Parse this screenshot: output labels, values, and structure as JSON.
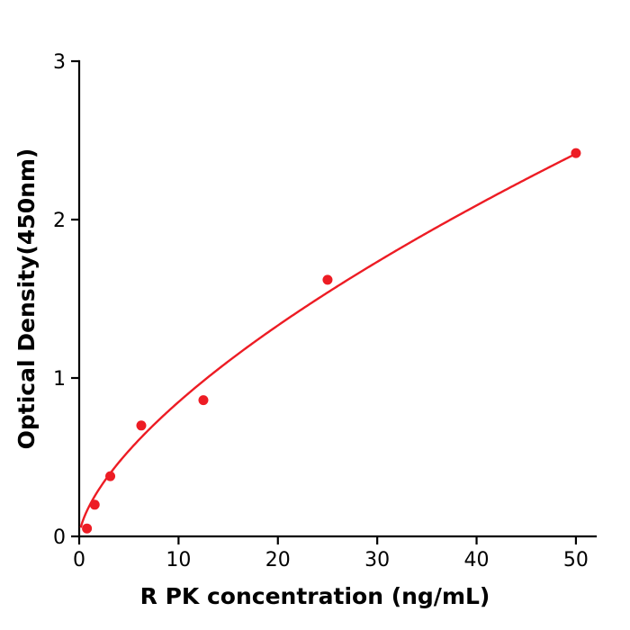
{
  "chart_data": {
    "type": "scatter",
    "title": "",
    "xlabel": "R  PK concentration (ng/mL)",
    "ylabel": "Optical Density(450nm)",
    "xlim": [
      0,
      52
    ],
    "ylim": [
      0,
      3
    ],
    "xticks": [
      0,
      10,
      20,
      30,
      40,
      50
    ],
    "yticks": [
      0,
      1,
      2,
      3
    ],
    "grid": false,
    "legend_position": "none",
    "color": "#ed1c24",
    "axis_color": "#000000",
    "points": [
      {
        "x": 0.78,
        "y": 0.05
      },
      {
        "x": 1.56,
        "y": 0.2
      },
      {
        "x": 3.13,
        "y": 0.38
      },
      {
        "x": 6.25,
        "y": 0.7
      },
      {
        "x": 12.5,
        "y": 0.86
      },
      {
        "x": 25,
        "y": 1.62
      },
      {
        "x": 50,
        "y": 2.42
      }
    ],
    "fit_curve": {
      "type": "power",
      "a": 0.19,
      "b": 0.65
    }
  }
}
